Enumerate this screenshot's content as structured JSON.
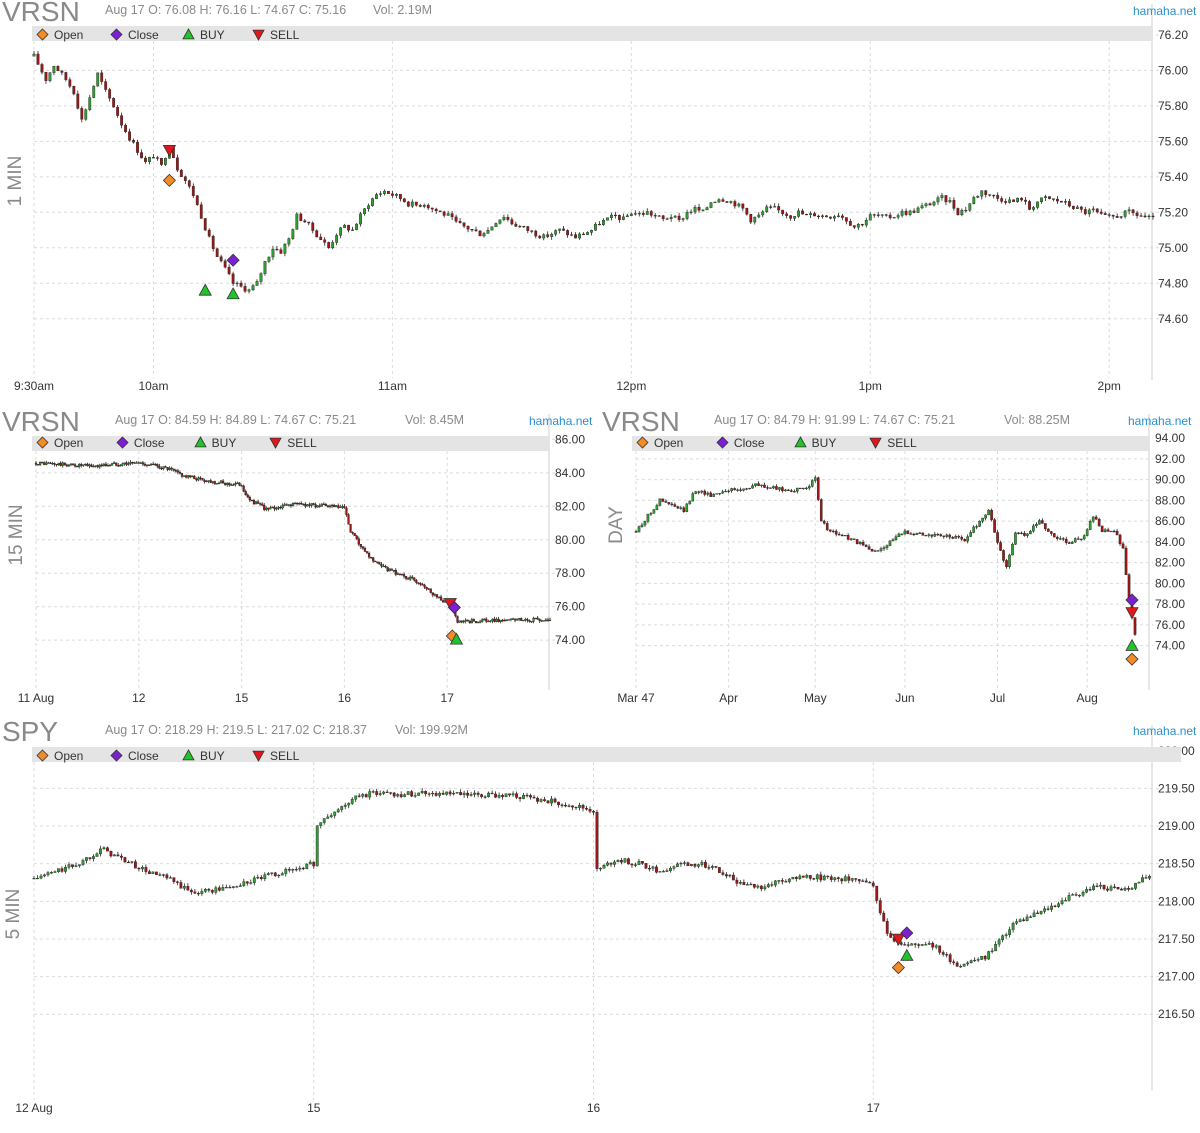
{
  "brand": {
    "site": "hamaha.net",
    "site_color": "#2a8fd0"
  },
  "legend": [
    {
      "icon": "open-diamond-icon",
      "label": "Open",
      "color": "#f28c28"
    },
    {
      "icon": "close-diamond-icon",
      "label": "Close",
      "color": "#7b1fd1"
    },
    {
      "icon": "buy-triangle-icon",
      "label": "BUY",
      "color": "#22c32a"
    },
    {
      "icon": "sell-triangle-icon",
      "label": "SELL",
      "color": "#e0181c"
    }
  ],
  "colors": {
    "up": "#2e9e2e",
    "down": "#a01616",
    "grid": "#dcdcdc"
  },
  "panels": {
    "p1": {
      "symbol": "VRSN",
      "timeframe": "1 MIN",
      "info": "Aug 17 O: 76.08 H: 76.16 L: 74.67 C: 75.16",
      "vol": "Vol: 2.19M"
    },
    "p2": {
      "symbol": "VRSN",
      "timeframe": "15 MIN",
      "info": "Aug 17 O: 84.59 H: 84.89 L: 74.67 C: 75.21",
      "vol": "Vol: 8.45M"
    },
    "p3": {
      "symbol": "VRSN",
      "timeframe": "DAY",
      "info": "Aug 17 O: 84.79 H: 91.99 L: 74.67 C: 75.21",
      "vol": "Vol: 88.25M"
    },
    "p4": {
      "symbol": "SPY",
      "timeframe": "5 MIN",
      "info": "Aug 17 O: 218.29 H: 219.5 L: 217.02 C: 218.37",
      "vol": "Vol: 199.92M"
    }
  },
  "chart_data": [
    {
      "id": "p1",
      "type": "candlestick",
      "title": "VRSN 1 MIN",
      "ylim": [
        74.3,
        76.25
      ],
      "yticks": [
        "76.20",
        "76.00",
        "75.80",
        "75.60",
        "75.40",
        "75.20",
        "75.00",
        "74.80",
        "74.60"
      ],
      "xticks": [
        "9:30am",
        "10am",
        "11am",
        "12pm",
        "1pm",
        "2pm"
      ],
      "x_range_minutes": [
        0,
        281
      ],
      "xtick_minutes": [
        0,
        30,
        90,
        150,
        210,
        270
      ],
      "path": [
        [
          0,
          76.08
        ],
        [
          3,
          75.95
        ],
        [
          5,
          76.03
        ],
        [
          8,
          75.95
        ],
        [
          10,
          75.88
        ],
        [
          12,
          75.72
        ],
        [
          14,
          75.85
        ],
        [
          16,
          75.98
        ],
        [
          18,
          75.88
        ],
        [
          20,
          75.8
        ],
        [
          22,
          75.7
        ],
        [
          24,
          75.62
        ],
        [
          26,
          75.55
        ],
        [
          28,
          75.48
        ],
        [
          30,
          75.52
        ],
        [
          32,
          75.46
        ],
        [
          34,
          75.58
        ],
        [
          36,
          75.45
        ],
        [
          38,
          75.38
        ],
        [
          40,
          75.3
        ],
        [
          42,
          75.18
        ],
        [
          44,
          75.05
        ],
        [
          46,
          74.95
        ],
        [
          48,
          74.88
        ],
        [
          50,
          74.8
        ],
        [
          52,
          74.78
        ],
        [
          54,
          74.76
        ],
        [
          56,
          74.8
        ],
        [
          58,
          74.92
        ],
        [
          60,
          75.0
        ],
        [
          62,
          74.98
        ],
        [
          64,
          75.05
        ],
        [
          66,
          75.18
        ],
        [
          68,
          75.15
        ],
        [
          70,
          75.1
        ],
        [
          72,
          75.05
        ],
        [
          74,
          75.0
        ],
        [
          76,
          75.08
        ],
        [
          78,
          75.12
        ],
        [
          80,
          75.1
        ],
        [
          82,
          75.18
        ],
        [
          84,
          75.25
        ],
        [
          86,
          75.3
        ],
        [
          88,
          75.32
        ],
        [
          90,
          75.3
        ],
        [
          92,
          75.28
        ],
        [
          94,
          75.25
        ],
        [
          96,
          75.24
        ],
        [
          98,
          75.25
        ],
        [
          100,
          75.22
        ],
        [
          102,
          75.2
        ],
        [
          104,
          75.18
        ],
        [
          106,
          75.14
        ],
        [
          108,
          75.12
        ],
        [
          110,
          75.1
        ],
        [
          112,
          75.08
        ],
        [
          114,
          75.1
        ],
        [
          116,
          75.15
        ],
        [
          118,
          75.18
        ],
        [
          120,
          75.14
        ],
        [
          122,
          75.12
        ],
        [
          124,
          75.1
        ],
        [
          126,
          75.08
        ],
        [
          128,
          75.06
        ],
        [
          130,
          75.08
        ],
        [
          132,
          75.1
        ],
        [
          134,
          75.08
        ],
        [
          136,
          75.06
        ],
        [
          138,
          75.08
        ],
        [
          140,
          75.1
        ],
        [
          142,
          75.14
        ],
        [
          144,
          75.16
        ],
        [
          146,
          75.18
        ],
        [
          148,
          75.16
        ],
        [
          150,
          75.2
        ],
        [
          152,
          75.19
        ],
        [
          154,
          75.2
        ],
        [
          156,
          75.18
        ],
        [
          158,
          75.16
        ],
        [
          160,
          75.18
        ],
        [
          162,
          75.15
        ],
        [
          164,
          75.2
        ],
        [
          166,
          75.22
        ],
        [
          168,
          75.2
        ],
        [
          170,
          75.26
        ],
        [
          172,
          75.28
        ],
        [
          174,
          75.27
        ],
        [
          176,
          75.25
        ],
        [
          178,
          75.22
        ],
        [
          180,
          75.16
        ],
        [
          182,
          75.18
        ],
        [
          184,
          75.22
        ],
        [
          186,
          75.22
        ],
        [
          188,
          75.2
        ],
        [
          190,
          75.18
        ],
        [
          192,
          75.2
        ],
        [
          194,
          75.18
        ],
        [
          196,
          75.19
        ],
        [
          198,
          75.18
        ],
        [
          200,
          75.18
        ],
        [
          202,
          75.19
        ],
        [
          204,
          75.16
        ],
        [
          206,
          75.12
        ],
        [
          208,
          75.14
        ],
        [
          210,
          75.18
        ],
        [
          212,
          75.18
        ],
        [
          214,
          75.17
        ],
        [
          216,
          75.18
        ],
        [
          218,
          75.2
        ],
        [
          220,
          75.2
        ],
        [
          222,
          75.22
        ],
        [
          224,
          75.24
        ],
        [
          226,
          75.26
        ],
        [
          228,
          75.28
        ],
        [
          230,
          75.26
        ],
        [
          232,
          75.2
        ],
        [
          234,
          75.22
        ],
        [
          236,
          75.28
        ],
        [
          238,
          75.32
        ],
        [
          240,
          75.3
        ],
        [
          242,
          75.28
        ],
        [
          244,
          75.27
        ],
        [
          246,
          75.26
        ],
        [
          248,
          75.28
        ],
        [
          250,
          75.22
        ],
        [
          252,
          75.26
        ],
        [
          254,
          75.28
        ],
        [
          256,
          75.27
        ],
        [
          258,
          75.26
        ],
        [
          260,
          75.24
        ],
        [
          262,
          75.22
        ],
        [
          264,
          75.2
        ],
        [
          266,
          75.21
        ],
        [
          268,
          75.18
        ],
        [
          270,
          75.17
        ],
        [
          272,
          75.18
        ],
        [
          275,
          75.2
        ],
        [
          278,
          75.18
        ],
        [
          281,
          75.16
        ]
      ],
      "markers": [
        {
          "type": "sell",
          "minute": 34,
          "price": 75.55
        },
        {
          "type": "open",
          "minute": 34,
          "price": 75.38
        },
        {
          "type": "buy",
          "minute": 43,
          "price": 74.76
        },
        {
          "type": "buy",
          "minute": 50,
          "price": 74.74
        },
        {
          "type": "close",
          "minute": 50,
          "price": 74.93
        }
      ]
    },
    {
      "id": "p2",
      "type": "candlestick",
      "title": "VRSN 15 MIN",
      "ylim": [
        71.5,
        86.2
      ],
      "yticks": [
        "86.00",
        "84.00",
        "82.00",
        "80.00",
        "78.00",
        "76.00",
        "74.00"
      ],
      "xticks": [
        "11 Aug",
        "12",
        "15",
        "16",
        "17"
      ],
      "x_range_days": [
        0,
        5
      ],
      "xtick_days": [
        0,
        1,
        2,
        3,
        4
      ],
      "path": [
        [
          0,
          84.59
        ],
        [
          0.25,
          84.5
        ],
        [
          0.55,
          84.4
        ],
        [
          0.8,
          84.55
        ],
        [
          1.0,
          84.6
        ],
        [
          1.15,
          84.45
        ],
        [
          1.3,
          84.2
        ],
        [
          1.45,
          83.8
        ],
        [
          1.65,
          83.55
        ],
        [
          1.85,
          83.35
        ],
        [
          2.0,
          83.3
        ],
        [
          2.05,
          82.5
        ],
        [
          2.25,
          81.8
        ],
        [
          2.5,
          82.15
        ],
        [
          2.75,
          82.05
        ],
        [
          3.0,
          81.9
        ],
        [
          3.05,
          80.6
        ],
        [
          3.2,
          79.2
        ],
        [
          3.35,
          78.4
        ],
        [
          3.55,
          77.9
        ],
        [
          3.75,
          77.4
        ],
        [
          3.9,
          76.6
        ],
        [
          4.0,
          76.2
        ],
        [
          4.05,
          75.8
        ],
        [
          4.1,
          75.05
        ],
        [
          4.3,
          75.15
        ],
        [
          4.6,
          75.2
        ],
        [
          4.95,
          75.21
        ]
      ],
      "markers": [
        {
          "type": "sell",
          "day": 4.03,
          "price": 76.2
        },
        {
          "type": "close",
          "day": 4.07,
          "price": 75.95
        },
        {
          "type": "open",
          "day": 4.05,
          "price": 74.25
        },
        {
          "type": "buy",
          "day": 4.09,
          "price": 74.05
        }
      ]
    },
    {
      "id": "p3",
      "type": "candlestick",
      "title": "VRSN DAY",
      "ylim": [
        70.5,
        94.2
      ],
      "yticks": [
        "94.00",
        "92.00",
        "90.00",
        "88.00",
        "86.00",
        "84.00",
        "82.00",
        "80.00",
        "78.00",
        "76.00",
        "74.00"
      ],
      "xticks": [
        "Mar 47",
        "Apr",
        "May",
        "Jun",
        "Jul",
        "Aug"
      ],
      "x_range_days": [
        0,
        167
      ],
      "xtick_days": [
        0,
        31,
        60,
        90,
        121,
        151
      ],
      "path": [
        [
          0,
          85.0
        ],
        [
          4,
          86.5
        ],
        [
          8,
          88.0
        ],
        [
          12,
          87.5
        ],
        [
          16,
          87.0
        ],
        [
          20,
          89.0
        ],
        [
          25,
          88.5
        ],
        [
          30,
          89.0
        ],
        [
          35,
          89.0
        ],
        [
          40,
          89.5
        ],
        [
          45,
          89.2
        ],
        [
          50,
          89.0
        ],
        [
          55,
          89.0
        ],
        [
          58,
          89.5
        ],
        [
          60,
          90.0
        ],
        [
          62,
          86.0
        ],
        [
          65,
          85.0
        ],
        [
          70,
          84.5
        ],
        [
          75,
          83.8
        ],
        [
          80,
          83.0
        ],
        [
          85,
          84.0
        ],
        [
          90,
          85.0
        ],
        [
          95,
          84.8
        ],
        [
          100,
          84.6
        ],
        [
          105,
          84.5
        ],
        [
          110,
          84.2
        ],
        [
          115,
          86.0
        ],
        [
          118,
          87.0
        ],
        [
          121,
          84.0
        ],
        [
          124,
          81.5
        ],
        [
          127,
          85.0
        ],
        [
          130,
          84.5
        ],
        [
          135,
          86.0
        ],
        [
          140,
          84.5
        ],
        [
          145,
          84.0
        ],
        [
          150,
          84.5
        ],
        [
          153,
          86.5
        ],
        [
          156,
          85.0
        ],
        [
          160,
          85.0
        ],
        [
          163,
          83.5
        ],
        [
          165,
          78.5
        ],
        [
          167,
          75.2
        ]
      ],
      "markers": [
        {
          "type": "close",
          "day": 166,
          "price": 78.4
        },
        {
          "type": "sell",
          "day": 166,
          "price": 77.2
        },
        {
          "type": "buy",
          "day": 166,
          "price": 74.0
        },
        {
          "type": "open",
          "day": 166,
          "price": 72.7
        }
      ]
    },
    {
      "id": "p4",
      "type": "candlestick",
      "title": "SPY 5 MIN",
      "ylim": [
        215.6,
        220.05
      ],
      "yticks": [
        "220.00",
        "219.50",
        "219.00",
        "218.50",
        "218.00",
        "217.50",
        "217.00",
        "216.50"
      ],
      "xticks": [
        "12 Aug",
        "15",
        "16",
        "17"
      ],
      "x_range_days": [
        0,
        4
      ],
      "xtick_days": [
        0,
        1,
        2,
        3
      ],
      "path": [
        [
          0,
          218.3
        ],
        [
          0.08,
          218.4
        ],
        [
          0.16,
          218.5
        ],
        [
          0.24,
          218.7
        ],
        [
          0.32,
          218.55
        ],
        [
          0.4,
          218.4
        ],
        [
          0.48,
          218.3
        ],
        [
          0.56,
          218.12
        ],
        [
          0.64,
          218.15
        ],
        [
          0.72,
          218.2
        ],
        [
          0.8,
          218.3
        ],
        [
          0.9,
          218.4
        ],
        [
          1.0,
          218.5
        ],
        [
          1.01,
          219.0
        ],
        [
          1.08,
          219.2
        ],
        [
          1.16,
          219.4
        ],
        [
          1.24,
          219.45
        ],
        [
          1.32,
          219.42
        ],
        [
          1.4,
          219.45
        ],
        [
          1.5,
          219.42
        ],
        [
          1.6,
          219.4
        ],
        [
          1.7,
          219.42
        ],
        [
          1.8,
          219.35
        ],
        [
          1.9,
          219.3
        ],
        [
          2.0,
          219.2
        ],
        [
          2.01,
          218.4
        ],
        [
          2.08,
          218.55
        ],
        [
          2.16,
          218.5
        ],
        [
          2.24,
          218.4
        ],
        [
          2.32,
          218.5
        ],
        [
          2.42,
          218.48
        ],
        [
          2.52,
          218.25
        ],
        [
          2.6,
          218.2
        ],
        [
          2.7,
          218.3
        ],
        [
          2.8,
          218.32
        ],
        [
          2.9,
          218.3
        ],
        [
          3.0,
          218.2
        ],
        [
          3.05,
          217.55
        ],
        [
          3.12,
          217.4
        ],
        [
          3.2,
          217.45
        ],
        [
          3.3,
          217.15
        ],
        [
          3.4,
          217.25
        ],
        [
          3.5,
          217.7
        ],
        [
          3.6,
          217.85
        ],
        [
          3.7,
          218.05
        ],
        [
          3.8,
          218.2
        ],
        [
          3.9,
          218.15
        ],
        [
          4.0,
          218.37
        ]
      ],
      "markers": [
        {
          "type": "sell",
          "day": 3.09,
          "price": 217.5
        },
        {
          "type": "close",
          "day": 3.12,
          "price": 217.58
        },
        {
          "type": "buy",
          "day": 3.12,
          "price": 217.28
        },
        {
          "type": "open",
          "day": 3.09,
          "price": 217.12
        }
      ]
    }
  ]
}
